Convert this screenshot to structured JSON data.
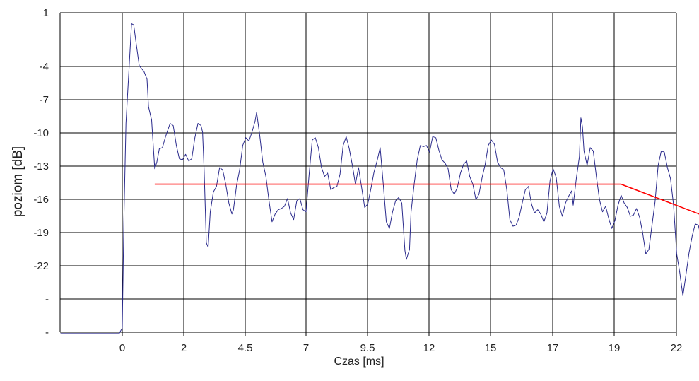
{
  "chart_data": {
    "type": "line",
    "xlabel": "Czas [ms]",
    "ylabel": "poziom [dB]",
    "x_tick_labels": [
      "0",
      "2",
      "4.5",
      "7",
      "9.5",
      "12",
      "15",
      "17",
      "19",
      "22"
    ],
    "y_tick_labels": [
      "1",
      "-4",
      "-7",
      "-10",
      "-13",
      "-16",
      "-19",
      "-22",
      "-",
      "-"
    ],
    "grid": true,
    "colors": {
      "trace": "#2a2a8c",
      "fit": "#ff0000",
      "grid": "#000000"
    },
    "series": [
      {
        "points": [
          [
            -2.0,
            -28.0
          ],
          [
            -0.1,
            -28.0
          ],
          [
            0.0,
            -27.5
          ],
          [
            0.05,
            -18.0
          ],
          [
            0.12,
            -9.0
          ],
          [
            0.22,
            -4.0
          ],
          [
            0.3,
            0.0
          ],
          [
            0.37,
            -0.1
          ],
          [
            0.45,
            -1.8
          ],
          [
            0.55,
            -3.8
          ],
          [
            0.7,
            -4.3
          ],
          [
            0.8,
            -5.0
          ],
          [
            0.85,
            -7.5
          ],
          [
            0.95,
            -8.7
          ],
          [
            1.05,
            -13.1
          ],
          [
            1.12,
            -12.5
          ],
          [
            1.2,
            -11.3
          ],
          [
            1.3,
            -11.2
          ],
          [
            1.4,
            -10.2
          ],
          [
            1.55,
            -9.0
          ],
          [
            1.65,
            -9.2
          ],
          [
            1.75,
            -11.0
          ],
          [
            1.85,
            -12.2
          ],
          [
            1.95,
            -12.3
          ],
          [
            2.05,
            -11.8
          ],
          [
            2.15,
            -12.4
          ],
          [
            2.25,
            -12.2
          ],
          [
            2.35,
            -10.3
          ],
          [
            2.45,
            -9.0
          ],
          [
            2.55,
            -9.2
          ],
          [
            2.6,
            -9.8
          ],
          [
            2.65,
            -13.2
          ],
          [
            2.72,
            -19.8
          ],
          [
            2.78,
            -20.2
          ],
          [
            2.85,
            -17.0
          ],
          [
            2.95,
            -15.2
          ],
          [
            3.05,
            -14.7
          ],
          [
            3.15,
            -13.0
          ],
          [
            3.25,
            -13.2
          ],
          [
            3.35,
            -14.5
          ],
          [
            3.45,
            -16.2
          ],
          [
            3.55,
            -17.2
          ],
          [
            3.6,
            -16.8
          ],
          [
            3.7,
            -14.6
          ],
          [
            3.8,
            -13.2
          ],
          [
            3.9,
            -11.0
          ],
          [
            4.0,
            -10.3
          ],
          [
            4.1,
            -10.6
          ],
          [
            4.2,
            -9.8
          ],
          [
            4.3,
            -8.8
          ],
          [
            4.35,
            -8.0
          ],
          [
            4.45,
            -10.1
          ],
          [
            4.55,
            -12.5
          ],
          [
            4.65,
            -13.8
          ],
          [
            4.75,
            -16.0
          ],
          [
            4.85,
            -17.9
          ],
          [
            4.95,
            -17.2
          ],
          [
            5.05,
            -16.8
          ],
          [
            5.15,
            -16.7
          ],
          [
            5.25,
            -16.5
          ],
          [
            5.35,
            -15.8
          ],
          [
            5.45,
            -17.1
          ],
          [
            5.55,
            -17.7
          ],
          [
            5.65,
            -16.0
          ],
          [
            5.75,
            -15.8
          ],
          [
            5.85,
            -16.8
          ],
          [
            5.95,
            -17.0
          ],
          [
            6.05,
            -13.6
          ],
          [
            6.15,
            -10.5
          ],
          [
            6.25,
            -10.3
          ],
          [
            6.35,
            -11.2
          ],
          [
            6.45,
            -13.0
          ],
          [
            6.55,
            -13.8
          ],
          [
            6.65,
            -13.5
          ],
          [
            6.75,
            -15.0
          ],
          [
            6.85,
            -14.8
          ],
          [
            6.95,
            -14.7
          ],
          [
            7.05,
            -13.6
          ],
          [
            7.15,
            -11.0
          ],
          [
            7.25,
            -10.2
          ],
          [
            7.35,
            -11.3
          ],
          [
            7.45,
            -12.8
          ],
          [
            7.55,
            -14.5
          ],
          [
            7.65,
            -13.0
          ],
          [
            7.75,
            -14.8
          ],
          [
            7.85,
            -16.6
          ],
          [
            7.95,
            -16.3
          ],
          [
            8.05,
            -14.9
          ],
          [
            8.15,
            -13.4
          ],
          [
            8.25,
            -12.4
          ],
          [
            8.35,
            -11.2
          ],
          [
            8.45,
            -14.5
          ],
          [
            8.55,
            -17.9
          ],
          [
            8.65,
            -18.5
          ],
          [
            8.75,
            -17.0
          ],
          [
            8.85,
            -16.0
          ],
          [
            8.95,
            -15.7
          ],
          [
            9.05,
            -16.2
          ],
          [
            9.15,
            -20.5
          ],
          [
            9.2,
            -21.3
          ],
          [
            9.3,
            -20.4
          ],
          [
            9.35,
            -17.0
          ],
          [
            9.45,
            -14.5
          ],
          [
            9.55,
            -12.3
          ],
          [
            9.65,
            -11.0
          ],
          [
            9.75,
            -11.1
          ],
          [
            9.85,
            -11.0
          ],
          [
            9.95,
            -11.6
          ],
          [
            10.05,
            -10.2
          ],
          [
            10.15,
            -10.3
          ],
          [
            10.25,
            -11.4
          ],
          [
            10.35,
            -12.3
          ],
          [
            10.45,
            -12.6
          ],
          [
            10.55,
            -13.1
          ],
          [
            10.65,
            -15.0
          ],
          [
            10.75,
            -15.4
          ],
          [
            10.85,
            -14.8
          ],
          [
            10.95,
            -13.5
          ],
          [
            11.05,
            -12.7
          ],
          [
            11.15,
            -12.4
          ],
          [
            11.25,
            -13.8
          ],
          [
            11.35,
            -14.5
          ],
          [
            11.45,
            -15.9
          ],
          [
            11.55,
            -15.4
          ],
          [
            11.65,
            -13.9
          ],
          [
            11.75,
            -12.7
          ],
          [
            11.85,
            -11.0
          ],
          [
            11.95,
            -10.5
          ],
          [
            12.05,
            -10.9
          ],
          [
            12.15,
            -12.5
          ],
          [
            12.25,
            -13.0
          ],
          [
            12.35,
            -13.2
          ],
          [
            12.45,
            -15.0
          ],
          [
            12.55,
            -17.7
          ],
          [
            12.65,
            -18.3
          ],
          [
            12.75,
            -18.2
          ],
          [
            12.85,
            -17.5
          ],
          [
            12.95,
            -16.2
          ],
          [
            13.05,
            -15.0
          ],
          [
            13.15,
            -14.7
          ],
          [
            13.25,
            -16.3
          ],
          [
            13.35,
            -17.1
          ],
          [
            13.45,
            -16.8
          ],
          [
            13.55,
            -17.2
          ],
          [
            13.65,
            -17.9
          ],
          [
            13.75,
            -17.1
          ],
          [
            13.85,
            -14.2
          ],
          [
            13.95,
            -13.1
          ],
          [
            14.05,
            -13.9
          ],
          [
            14.15,
            -16.5
          ],
          [
            14.25,
            -17.4
          ],
          [
            14.35,
            -16.2
          ],
          [
            14.45,
            -15.6
          ],
          [
            14.55,
            -15.1
          ],
          [
            14.6,
            -16.4
          ],
          [
            14.7,
            -14.0
          ],
          [
            14.8,
            -12.0
          ],
          [
            14.85,
            -8.5
          ],
          [
            14.9,
            -9.3
          ],
          [
            14.95,
            -11.5
          ],
          [
            15.05,
            -12.8
          ],
          [
            15.15,
            -11.2
          ],
          [
            15.25,
            -11.5
          ],
          [
            15.35,
            -13.8
          ],
          [
            15.45,
            -15.9
          ],
          [
            15.55,
            -17.0
          ],
          [
            15.65,
            -16.5
          ],
          [
            15.75,
            -17.6
          ],
          [
            15.85,
            -18.5
          ],
          [
            15.95,
            -17.8
          ],
          [
            16.05,
            -16.4
          ],
          [
            16.15,
            -15.5
          ],
          [
            16.25,
            -16.2
          ],
          [
            16.35,
            -16.6
          ],
          [
            16.45,
            -17.4
          ],
          [
            16.55,
            -17.3
          ],
          [
            16.65,
            -16.7
          ],
          [
            16.75,
            -17.5
          ],
          [
            16.85,
            -18.9
          ],
          [
            16.95,
            -20.8
          ],
          [
            17.05,
            -20.4
          ],
          [
            17.15,
            -18.2
          ],
          [
            17.25,
            -16.1
          ],
          [
            17.35,
            -12.8
          ],
          [
            17.45,
            -11.5
          ],
          [
            17.55,
            -11.6
          ],
          [
            17.65,
            -13.0
          ],
          [
            17.75,
            -14.0
          ],
          [
            17.85,
            -16.4
          ],
          [
            17.95,
            -20.8
          ],
          [
            18.05,
            -22.5
          ],
          [
            18.15,
            -24.6
          ],
          [
            18.25,
            -22.7
          ],
          [
            18.35,
            -20.7
          ],
          [
            18.45,
            -19.2
          ],
          [
            18.55,
            -18.1
          ],
          [
            18.65,
            -18.2
          ],
          [
            18.75,
            -19.4
          ],
          [
            18.85,
            -20.5
          ],
          [
            18.95,
            -21.3
          ],
          [
            19.05,
            -21.8
          ],
          [
            19.15,
            -22.3
          ],
          [
            19.25,
            -22.5
          ],
          [
            19.35,
            -22.0
          ],
          [
            19.45,
            -20.0
          ],
          [
            19.55,
            -17.8
          ],
          [
            19.65,
            -17.2
          ],
          [
            19.75,
            -17.6
          ],
          [
            19.85,
            -14.5
          ],
          [
            19.95,
            -13.5
          ],
          [
            20.05,
            -14.4
          ],
          [
            20.15,
            -16.1
          ],
          [
            20.25,
            -15.5
          ],
          [
            20.35,
            -16.9
          ],
          [
            20.45,
            -18.5
          ],
          [
            20.55,
            -16.8
          ],
          [
            20.65,
            -15.4
          ],
          [
            20.75,
            -15.8
          ],
          [
            20.85,
            -18.2
          ],
          [
            20.95,
            -20.6
          ],
          [
            21.05,
            -21.1
          ],
          [
            21.15,
            -20.2
          ],
          [
            21.25,
            -21.3
          ],
          [
            21.35,
            -19.3
          ],
          [
            21.45,
            -18.7
          ],
          [
            21.55,
            -19.4
          ],
          [
            21.65,
            -20.9
          ],
          [
            21.75,
            -20.0
          ],
          [
            21.85,
            -18.1
          ],
          [
            21.95,
            -17.0
          ],
          [
            22.05,
            -17.8
          ],
          [
            22.15,
            -18.6
          ],
          [
            22.25,
            -18.0
          ],
          [
            22.35,
            -18.3
          ],
          [
            22.45,
            -19.4
          ],
          [
            22.55,
            -19.3
          ],
          [
            22.65,
            -18.6
          ],
          [
            22.75,
            -17.6
          ],
          [
            22.85,
            -15.7
          ],
          [
            22.95,
            -16.5
          ],
          [
            23.05,
            -17.5
          ],
          [
            23.15,
            -18.6
          ],
          [
            23.25,
            -21.1
          ],
          [
            23.35,
            -22.8
          ],
          [
            23.45,
            -23.8
          ],
          [
            23.55,
            -23.5
          ],
          [
            23.65,
            -24.0
          ],
          [
            23.75,
            -23.4
          ],
          [
            23.85,
            -21.5
          ],
          [
            23.95,
            -18.8
          ],
          [
            24.05,
            -17.6
          ],
          [
            24.15,
            -18.4
          ],
          [
            24.25,
            -19.0
          ],
          [
            24.35,
            -20.4
          ]
        ]
      },
      {
        "points": [
          [
            1.05,
            -14.5
          ],
          [
            16.15,
            -14.5
          ],
          [
            24.4,
            -23.3
          ]
        ]
      }
    ]
  }
}
